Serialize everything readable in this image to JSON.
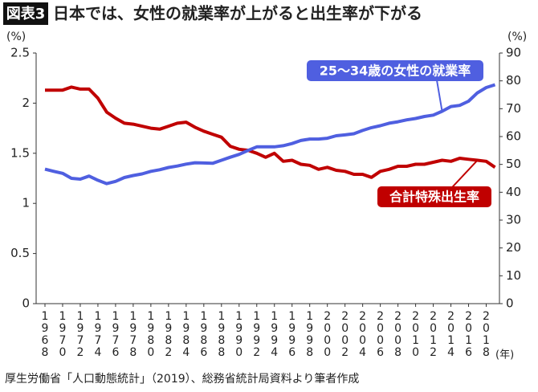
{
  "chart_data": {
    "type": "line",
    "badge": "図表3",
    "title": "日本では、女性の就業率が上がると出生率が下がる",
    "source": "厚生労働省「人口動態統計」（2019）、総務省統計局資料より筆者作成",
    "ylabel": "(%)",
    "y2label": "(%)",
    "xlabel": "(年)",
    "x": [
      1968,
      1969,
      1970,
      1971,
      1972,
      1973,
      1974,
      1975,
      1976,
      1977,
      1978,
      1979,
      1980,
      1981,
      1982,
      1983,
      1984,
      1985,
      1986,
      1987,
      1988,
      1989,
      1990,
      1991,
      1992,
      1993,
      1994,
      1995,
      1996,
      1997,
      1998,
      1999,
      2000,
      2001,
      2002,
      2003,
      2004,
      2005,
      2006,
      2007,
      2008,
      2009,
      2010,
      2011,
      2012,
      2013,
      2014,
      2015,
      2016,
      2017,
      2018,
      2019
    ],
    "series": [
      {
        "name": "合計特殊出生率",
        "color": "#c00000",
        "axis": "y",
        "values": [
          2.13,
          2.13,
          2.13,
          2.16,
          2.14,
          2.14,
          2.05,
          1.91,
          1.85,
          1.8,
          1.79,
          1.77,
          1.75,
          1.74,
          1.77,
          1.8,
          1.81,
          1.76,
          1.72,
          1.69,
          1.66,
          1.57,
          1.54,
          1.53,
          1.5,
          1.46,
          1.5,
          1.42,
          1.43,
          1.39,
          1.38,
          1.34,
          1.36,
          1.33,
          1.32,
          1.29,
          1.29,
          1.26,
          1.32,
          1.34,
          1.37,
          1.37,
          1.39,
          1.39,
          1.41,
          1.43,
          1.42,
          1.45,
          1.44,
          1.43,
          1.42,
          1.36
        ]
      },
      {
        "name": "25〜34歳の女性の就業率",
        "color": "#4f5fe0",
        "axis": "y2",
        "values": [
          48.3,
          47.5,
          46.8,
          45.0,
          44.7,
          45.8,
          44.3,
          43.1,
          43.9,
          45.3,
          46.0,
          46.6,
          47.5,
          48.1,
          48.9,
          49.4,
          50.1,
          50.6,
          50.5,
          50.4,
          51.5,
          52.6,
          53.6,
          55.0,
          56.3,
          56.3,
          56.3,
          56.7,
          57.5,
          58.6,
          59.1,
          59.1,
          59.4,
          60.3,
          60.6,
          61.0,
          62.2,
          63.2,
          63.9,
          64.8,
          65.3,
          66.0,
          66.5,
          67.2,
          67.7,
          69.1,
          70.8,
          71.2,
          72.7,
          75.7,
          77.6,
          78.6
        ]
      }
    ],
    "xlim": [
      1967,
      2019.5
    ],
    "xticks": [
      1968,
      1970,
      1972,
      1974,
      1976,
      1978,
      1980,
      1982,
      1984,
      1986,
      1988,
      1990,
      1992,
      1994,
      1996,
      1998,
      2000,
      2002,
      2004,
      2006,
      2008,
      2010,
      2012,
      2014,
      2016,
      2018
    ],
    "ylim": [
      0,
      2.5
    ],
    "yticks": [
      0,
      0.5,
      1,
      1.5,
      2,
      2.5
    ],
    "y2lim": [
      0,
      90
    ],
    "y2ticks": [
      0,
      10,
      20,
      30,
      40,
      50,
      60,
      70,
      80,
      90
    ]
  }
}
